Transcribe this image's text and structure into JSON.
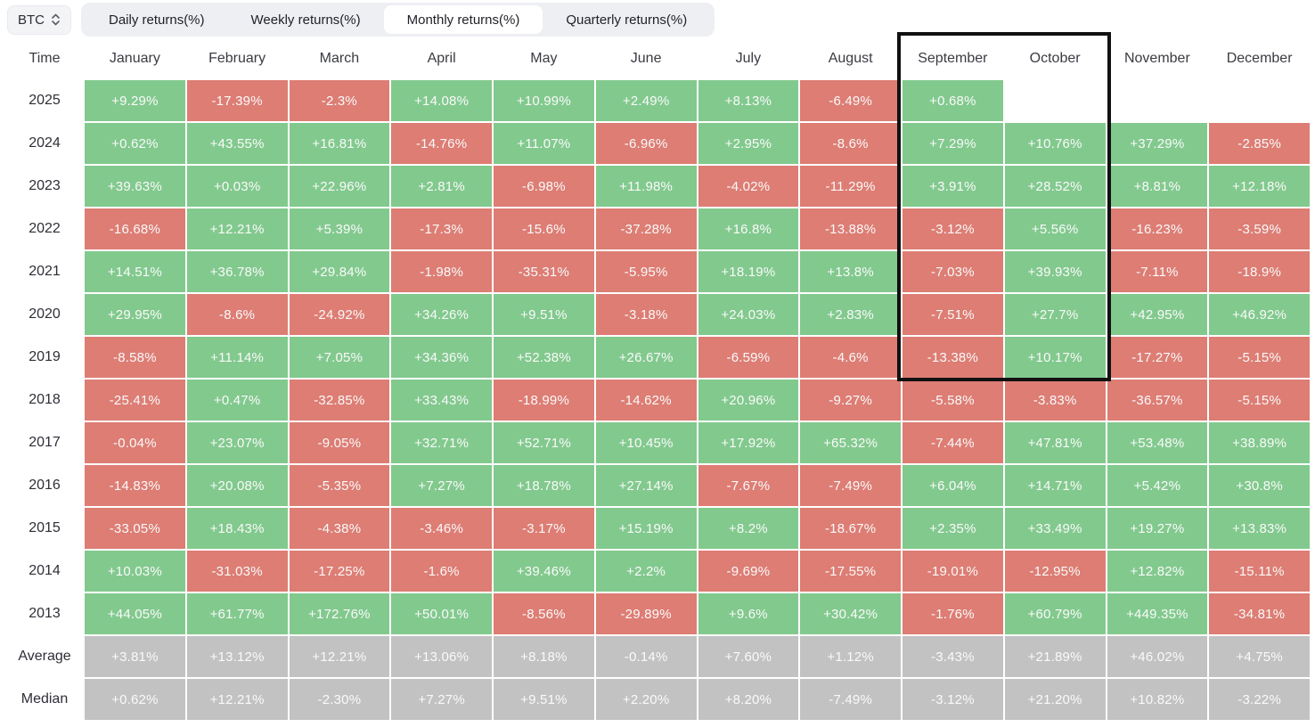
{
  "app": {
    "symbol_selector": {
      "value": "BTC",
      "icon": "updown-chevron-icon"
    },
    "tabs": [
      {
        "label": "Daily returns(%)",
        "active": false
      },
      {
        "label": "Weekly returns(%)",
        "active": false
      },
      {
        "label": "Monthly returns(%)",
        "active": true
      },
      {
        "label": "Quarterly returns(%)",
        "active": false
      }
    ]
  },
  "colors": {
    "positive": "#82c98e",
    "negative": "#dd7d74",
    "summary": "#c2c2c2",
    "highlight_border": "#111111",
    "cell_text": "#fafafa",
    "header_text": "#3a3b43"
  },
  "chart_data": {
    "type": "table",
    "title": "BTC Monthly returns(%)",
    "columns": [
      "Time",
      "January",
      "February",
      "March",
      "April",
      "May",
      "June",
      "July",
      "August",
      "September",
      "October",
      "November",
      "December"
    ],
    "rows": [
      {
        "label": "2025",
        "summary": false,
        "values": [
          "+9.29%",
          "-17.39%",
          "-2.3%",
          "+14.08%",
          "+10.99%",
          "+2.49%",
          "+8.13%",
          "-6.49%",
          "+0.68%",
          "",
          "",
          ""
        ]
      },
      {
        "label": "2024",
        "summary": false,
        "values": [
          "+0.62%",
          "+43.55%",
          "+16.81%",
          "-14.76%",
          "+11.07%",
          "-6.96%",
          "+2.95%",
          "-8.6%",
          "+7.29%",
          "+10.76%",
          "+37.29%",
          "-2.85%"
        ]
      },
      {
        "label": "2023",
        "summary": false,
        "values": [
          "+39.63%",
          "+0.03%",
          "+22.96%",
          "+2.81%",
          "-6.98%",
          "+11.98%",
          "-4.02%",
          "-11.29%",
          "+3.91%",
          "+28.52%",
          "+8.81%",
          "+12.18%"
        ]
      },
      {
        "label": "2022",
        "summary": false,
        "values": [
          "-16.68%",
          "+12.21%",
          "+5.39%",
          "-17.3%",
          "-15.6%",
          "-37.28%",
          "+16.8%",
          "-13.88%",
          "-3.12%",
          "+5.56%",
          "-16.23%",
          "-3.59%"
        ]
      },
      {
        "label": "2021",
        "summary": false,
        "values": [
          "+14.51%",
          "+36.78%",
          "+29.84%",
          "-1.98%",
          "-35.31%",
          "-5.95%",
          "+18.19%",
          "+13.8%",
          "-7.03%",
          "+39.93%",
          "-7.11%",
          "-18.9%"
        ]
      },
      {
        "label": "2020",
        "summary": false,
        "values": [
          "+29.95%",
          "-8.6%",
          "-24.92%",
          "+34.26%",
          "+9.51%",
          "-3.18%",
          "+24.03%",
          "+2.83%",
          "-7.51%",
          "+27.7%",
          "+42.95%",
          "+46.92%"
        ]
      },
      {
        "label": "2019",
        "summary": false,
        "values": [
          "-8.58%",
          "+11.14%",
          "+7.05%",
          "+34.36%",
          "+52.38%",
          "+26.67%",
          "-6.59%",
          "-4.6%",
          "-13.38%",
          "+10.17%",
          "-17.27%",
          "-5.15%"
        ]
      },
      {
        "label": "2018",
        "summary": false,
        "values": [
          "-25.41%",
          "+0.47%",
          "-32.85%",
          "+33.43%",
          "-18.99%",
          "-14.62%",
          "+20.96%",
          "-9.27%",
          "-5.58%",
          "-3.83%",
          "-36.57%",
          "-5.15%"
        ]
      },
      {
        "label": "2017",
        "summary": false,
        "values": [
          "-0.04%",
          "+23.07%",
          "-9.05%",
          "+32.71%",
          "+52.71%",
          "+10.45%",
          "+17.92%",
          "+65.32%",
          "-7.44%",
          "+47.81%",
          "+53.48%",
          "+38.89%"
        ]
      },
      {
        "label": "2016",
        "summary": false,
        "values": [
          "-14.83%",
          "+20.08%",
          "-5.35%",
          "+7.27%",
          "+18.78%",
          "+27.14%",
          "-7.67%",
          "-7.49%",
          "+6.04%",
          "+14.71%",
          "+5.42%",
          "+30.8%"
        ]
      },
      {
        "label": "2015",
        "summary": false,
        "values": [
          "-33.05%",
          "+18.43%",
          "-4.38%",
          "-3.46%",
          "-3.17%",
          "+15.19%",
          "+8.2%",
          "-18.67%",
          "+2.35%",
          "+33.49%",
          "+19.27%",
          "+13.83%"
        ]
      },
      {
        "label": "2014",
        "summary": false,
        "values": [
          "+10.03%",
          "-31.03%",
          "-17.25%",
          "-1.6%",
          "+39.46%",
          "+2.2%",
          "-9.69%",
          "-17.55%",
          "-19.01%",
          "-12.95%",
          "+12.82%",
          "-15.11%"
        ]
      },
      {
        "label": "2013",
        "summary": false,
        "values": [
          "+44.05%",
          "+61.77%",
          "+172.76%",
          "+50.01%",
          "-8.56%",
          "-29.89%",
          "+9.6%",
          "+30.42%",
          "-1.76%",
          "+60.79%",
          "+449.35%",
          "-34.81%"
        ]
      },
      {
        "label": "Average",
        "summary": true,
        "values": [
          "+3.81%",
          "+13.12%",
          "+12.21%",
          "+13.06%",
          "+8.18%",
          "-0.14%",
          "+7.60%",
          "+1.12%",
          "-3.43%",
          "+21.89%",
          "+46.02%",
          "+4.75%"
        ]
      },
      {
        "label": "Median",
        "summary": true,
        "values": [
          "+0.62%",
          "+12.21%",
          "-2.30%",
          "+7.27%",
          "+9.51%",
          "+2.20%",
          "+8.20%",
          "-7.49%",
          "-3.12%",
          "+21.20%",
          "+10.82%",
          "-3.22%"
        ]
      }
    ],
    "highlight": {
      "from_column": "September",
      "to_column": "October",
      "from_row": "header",
      "to_row": "2019"
    },
    "legend": "green = positive monthly return, red = negative monthly return, gray = summary rows",
    "grid": false
  }
}
